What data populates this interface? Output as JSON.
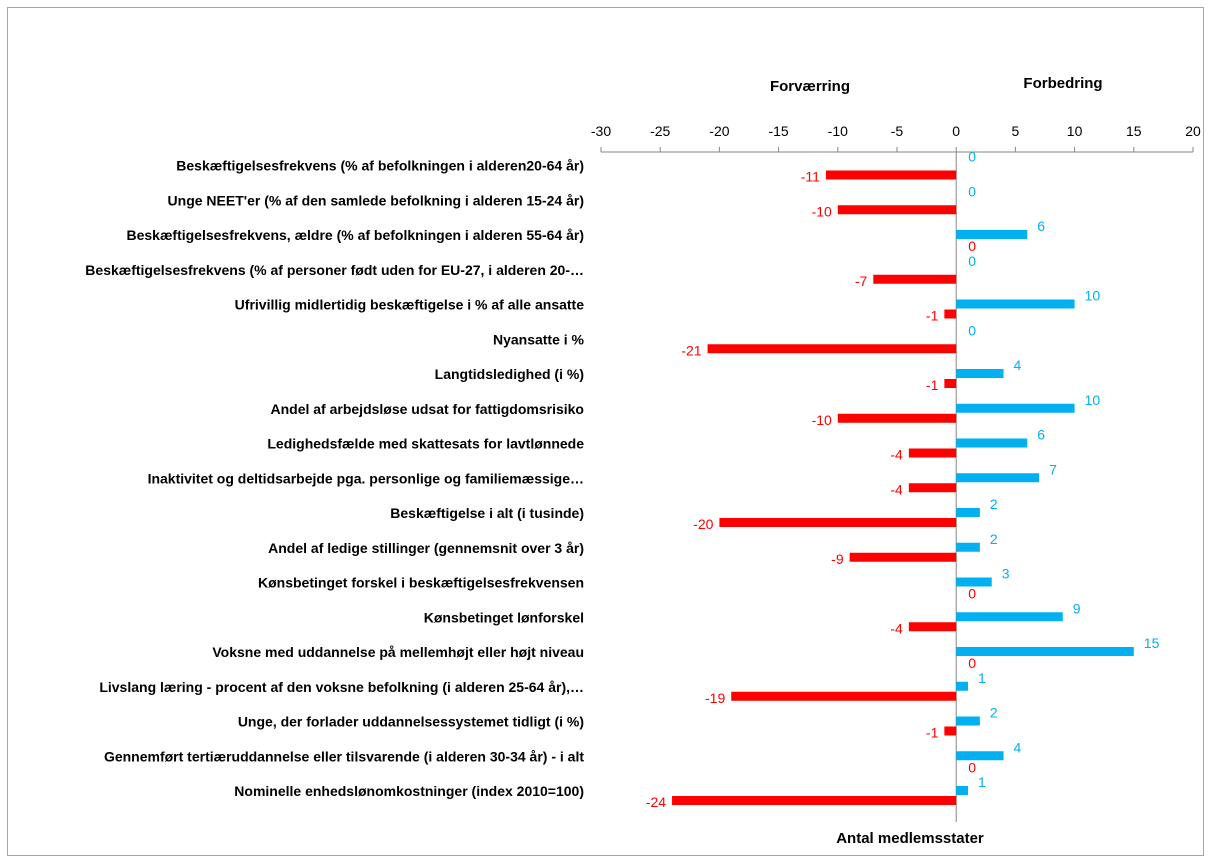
{
  "chart_data": {
    "type": "bar",
    "orientation": "horizontal",
    "xlabel": "Antal medlemsstater",
    "header_left": "Forværring",
    "header_right": "Forbedring",
    "xlim": [
      -30,
      20
    ],
    "xticks": [
      -30,
      -25,
      -20,
      -15,
      -10,
      -5,
      0,
      5,
      10,
      15,
      20
    ],
    "axis_position": "top",
    "grid": false,
    "categories": [
      "Beskæftigelsesfrekvens (% af befolkningen i alderen20-64 år)",
      "Unge NEET'er (% af den samlede befolkning i alderen 15-24 år)",
      "Beskæftigelsesfrekvens, ældre (% af befolkningen i alderen 55-64 år)",
      "Beskæftigelsesfrekvens (% af personer født uden for EU-27, i alderen 20-…",
      "Ufrivillig midlertidig beskæftigelse i % af alle ansatte",
      "Nyansatte i %",
      "Langtidsledighed (i %)",
      "Andel af arbejdsløse udsat for fattigdomsrisiko",
      "Ledighedsfælde med skattesats for lavtlønnede",
      "Inaktivitet og deltidsarbejde pga. personlige og familiemæssige…",
      "Beskæftigelse i alt (i tusinde)",
      "Andel af ledige stillinger (gennemsnit over 3 år)",
      "Kønsbetinget forskel i beskæftigelsesfrekvensen",
      "Kønsbetinget lønforskel",
      "Voksne med uddannelse på mellemhøjt eller højt niveau",
      "Livslang læring - procent af den voksne befolkning (i alderen 25-64 år),…",
      "Unge, der forlader uddannelsessystemet tidligt (i %)",
      "Gennemført tertiæruddannelse eller tilsvarende (i alderen 30-34 år) - i alt",
      "Nominelle enhedslønomkostninger (index 2010=100)"
    ],
    "series": [
      {
        "name": "Forværring",
        "color": "#ff0000",
        "values": [
          -11,
          -10,
          0,
          -7,
          -1,
          -21,
          -1,
          -10,
          -4,
          -4,
          -20,
          -9,
          0,
          -4,
          0,
          -19,
          -1,
          0,
          -24
        ]
      },
      {
        "name": "Forbedring",
        "color": "#00b0f0",
        "values": [
          0,
          0,
          6,
          0,
          10,
          0,
          4,
          10,
          6,
          7,
          2,
          2,
          3,
          9,
          15,
          1,
          2,
          4,
          1
        ]
      }
    ]
  }
}
